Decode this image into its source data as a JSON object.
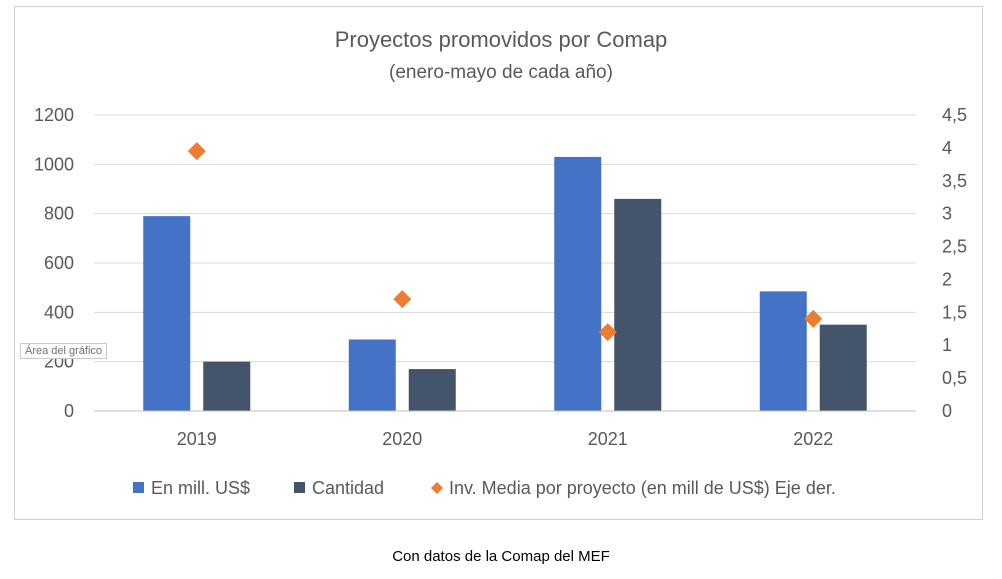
{
  "chart_data": {
    "type": "bar",
    "title": "Proyectos promovidos por Comap",
    "subtitle": "(enero-mayo de cada año)",
    "categories": [
      "2019",
      "2020",
      "2021",
      "2022"
    ],
    "series": [
      {
        "name": "En mill. US$",
        "type": "bar",
        "axis": "left",
        "color": "#4472C4",
        "values": [
          790,
          290,
          1030,
          485
        ]
      },
      {
        "name": "Cantidad",
        "type": "bar",
        "axis": "left",
        "color": "#44546A",
        "values": [
          200,
          170,
          860,
          350
        ]
      },
      {
        "name": "Inv. Media por proyecto (en mill de US$) Eje der.",
        "type": "scatter",
        "marker": "diamond",
        "axis": "right",
        "color": "#ED7D31",
        "values": [
          3.95,
          1.7,
          1.2,
          1.4
        ]
      }
    ],
    "y_left": {
      "ylim": [
        0,
        1200
      ],
      "ticks": [
        "0",
        "200",
        "400",
        "600",
        "800",
        "1000",
        "1200"
      ],
      "tick_values": [
        0,
        200,
        400,
        600,
        800,
        1000,
        1200
      ]
    },
    "y_right": {
      "ylim": [
        0,
        4.5
      ],
      "ticks": [
        "0",
        "0,5",
        "1",
        "1,5",
        "2",
        "2,5",
        "3",
        "3,5",
        "4",
        "4,5"
      ],
      "tick_values": [
        0,
        0.5,
        1,
        1.5,
        2,
        2.5,
        3,
        3.5,
        4,
        4.5
      ]
    },
    "grid": true,
    "legend_position": "bottom"
  },
  "tooltip": "Área del gráfico",
  "source_note": "Con datos de la Comap del MEF"
}
